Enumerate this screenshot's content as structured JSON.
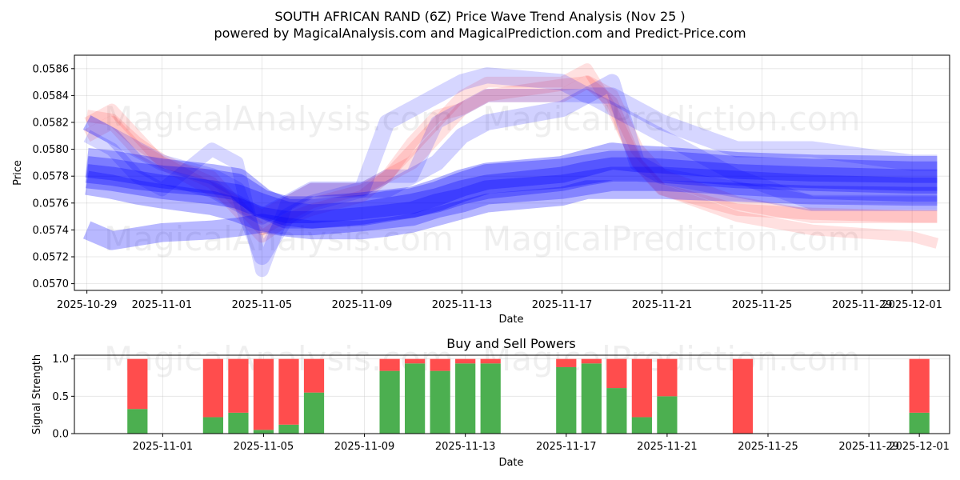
{
  "title_line1": "SOUTH AFRICAN RAND (6Z) Price Wave Trend Analysis (Nov 25 )",
  "title_line2": "powered by MagicalAnalysis.com and MagicalPrediction.com and Predict-Price.com",
  "watermark_a": "MagicalAnalysis.com",
  "watermark_b": "MagicalPrediction.com",
  "colors": {
    "blue": "#0000ff",
    "red": "#ff0000",
    "buy": "#4caf50",
    "sell": "#ff4d4d"
  },
  "chart_data": [
    {
      "type": "line",
      "name": "price-wave-chart",
      "xlabel": "Date",
      "ylabel": "Price",
      "x_range": [
        "2025-10-28T12:00",
        "2025-12-02T12:00"
      ],
      "ylim": [
        0.05695,
        0.0587
      ],
      "x_ticks": [
        "2025-10-29",
        "2025-11-01",
        "2025-11-05",
        "2025-11-09",
        "2025-11-13",
        "2025-11-17",
        "2025-11-21",
        "2025-11-25",
        "2025-11-29",
        "2025-12-01"
      ],
      "y_ticks": [
        "0.0570",
        "0.0572",
        "0.0574",
        "0.0576",
        "0.0578",
        "0.0580",
        "0.0582",
        "0.0584",
        "0.0586"
      ],
      "grid": true,
      "dates": [
        "2025-10-29",
        "2025-10-30",
        "2025-10-31",
        "2025-11-01",
        "2025-11-03",
        "2025-11-04",
        "2025-11-05",
        "2025-11-06",
        "2025-11-07",
        "2025-11-09",
        "2025-11-10",
        "2025-11-11",
        "2025-11-12",
        "2025-11-13",
        "2025-11-14",
        "2025-11-17",
        "2025-11-18",
        "2025-11-19",
        "2025-11-20",
        "2025-11-21",
        "2025-11-24",
        "2025-11-27",
        "2025-12-01",
        "2025-12-02"
      ],
      "series": [
        {
          "name": "red-wave-1",
          "color": "red",
          "alpha": 0.12,
          "width": 9e-05,
          "values": [
            0.05825,
            0.05822,
            0.05805,
            0.05792,
            0.05775,
            0.05755,
            0.05735,
            0.05748,
            0.05755,
            0.05765,
            0.0578,
            0.05805,
            0.05825,
            0.0583,
            0.0584,
            0.05848,
            0.0585,
            0.05835,
            0.0579,
            0.0577,
            0.05755,
            0.05752,
            0.0575,
            0.0575
          ]
        },
        {
          "name": "red-wave-2",
          "color": "red",
          "alpha": 0.12,
          "width": 8e-05,
          "values": [
            0.0582,
            0.0583,
            0.0581,
            0.0579,
            0.0578,
            0.0576,
            0.0574,
            0.0575,
            0.0576,
            0.0577,
            0.0578,
            0.058,
            0.0582,
            0.0584,
            0.0585,
            0.0585,
            0.0586,
            0.0583,
            0.0579,
            0.0577,
            0.0575,
            0.0574,
            0.05735,
            0.0573
          ]
        },
        {
          "name": "red-wave-3",
          "color": "red",
          "alpha": 0.12,
          "width": 0.0001,
          "values": [
            0.0581,
            0.0582,
            0.058,
            0.0579,
            0.0577,
            0.0576,
            0.0575,
            0.0576,
            0.0577,
            0.0577,
            0.0578,
            0.0579,
            0.0581,
            0.0583,
            0.0584,
            0.0584,
            0.0585,
            0.0584,
            0.058,
            0.0578,
            0.0576,
            0.0575,
            0.0575,
            0.0575
          ]
        },
        {
          "name": "blue-wave-1",
          "color": "blue",
          "alpha": 0.16,
          "width": 0.00012,
          "values": [
            0.0582,
            0.0581,
            0.058,
            0.0579,
            0.0578,
            0.0577,
            0.0572,
            0.0575,
            0.0576,
            0.0577,
            0.0582,
            0.0583,
            0.0584,
            0.0585,
            0.05855,
            0.0585,
            0.0584,
            0.0584,
            0.0583,
            0.0582,
            0.058,
            0.058,
            0.0579,
            0.0579
          ]
        },
        {
          "name": "blue-wave-2",
          "color": "blue",
          "alpha": 0.16,
          "width": 0.0001,
          "values": [
            0.0581,
            0.058,
            0.0578,
            0.0577,
            0.058,
            0.0579,
            0.0571,
            0.0576,
            0.0577,
            0.0577,
            0.0578,
            0.0578,
            0.0582,
            0.0583,
            0.0584,
            0.0584,
            0.0584,
            0.0583,
            0.0582,
            0.0581,
            0.0578,
            0.0576,
            0.0576,
            0.0576
          ]
        },
        {
          "name": "blue-wave-3",
          "color": "blue",
          "alpha": 0.18,
          "width": 0.00012,
          "values": [
            0.0582,
            0.0581,
            0.0579,
            0.0578,
            0.0577,
            0.0576,
            0.0575,
            0.0576,
            0.0577,
            0.0577,
            0.0577,
            0.0578,
            0.0579,
            0.0581,
            0.0582,
            0.0583,
            0.0584,
            0.0585,
            0.0579,
            0.0578,
            0.0577,
            0.0576,
            0.0576,
            0.0576
          ]
        },
        {
          "name": "blue-band-1",
          "color": "blue",
          "alpha": 0.3,
          "width": 0.00022,
          "values": [
            0.0579,
            0.05788,
            0.05785,
            0.05782,
            0.05778,
            0.05775,
            0.0576,
            0.05752,
            0.05752,
            0.05755,
            0.05758,
            0.0576,
            0.05765,
            0.05772,
            0.05778,
            0.05782,
            0.05785,
            0.05788,
            0.05788,
            0.05788,
            0.05784,
            0.05782,
            0.0578,
            0.0578
          ]
        },
        {
          "name": "blue-band-2",
          "color": "blue",
          "alpha": 0.3,
          "width": 0.0002,
          "values": [
            0.05785,
            0.05783,
            0.0578,
            0.05778,
            0.05775,
            0.05772,
            0.0576,
            0.05755,
            0.05755,
            0.05758,
            0.0576,
            0.05762,
            0.05768,
            0.05775,
            0.0578,
            0.05785,
            0.0579,
            0.05795,
            0.05793,
            0.05792,
            0.05788,
            0.05786,
            0.05785,
            0.05785
          ]
        },
        {
          "name": "blue-band-3",
          "color": "blue",
          "alpha": 0.3,
          "width": 0.00018,
          "values": [
            0.0578,
            0.05778,
            0.05775,
            0.05772,
            0.05768,
            0.05765,
            0.05758,
            0.05752,
            0.0575,
            0.05752,
            0.05755,
            0.05758,
            0.05762,
            0.05768,
            0.05772,
            0.05778,
            0.05782,
            0.05785,
            0.05785,
            0.05784,
            0.0578,
            0.05778,
            0.05776,
            0.05776
          ]
        },
        {
          "name": "blue-band-4",
          "color": "blue",
          "alpha": 0.28,
          "width": 0.00014,
          "values": [
            0.0574,
            0.05732,
            0.05735,
            0.05738,
            0.0574,
            0.05742,
            0.05745,
            0.05742,
            0.0574,
            0.0574,
            0.05742,
            0.05745,
            0.0575,
            0.05755,
            0.0576,
            0.05765,
            0.0577,
            0.0577,
            0.0577,
            0.0577,
            0.05768,
            0.05766,
            0.05765,
            0.05765
          ]
        },
        {
          "name": "blue-band-5",
          "color": "blue",
          "alpha": 0.28,
          "width": 0.00018,
          "values": [
            0.05775,
            0.05772,
            0.05768,
            0.05765,
            0.0576,
            0.05755,
            0.05748,
            0.05745,
            0.05745,
            0.05748,
            0.0575,
            0.05752,
            0.05758,
            0.05762,
            0.05768,
            0.05772,
            0.05775,
            0.05778,
            0.05778,
            0.05778,
            0.05775,
            0.05772,
            0.0577,
            0.0577
          ]
        }
      ]
    },
    {
      "type": "bar",
      "name": "buy-sell-powers",
      "title": "Buy and Sell Powers",
      "xlabel": "Date",
      "ylabel": "Signal Strength",
      "ylim": [
        0,
        1.05
      ],
      "y_ticks": [
        "0.0",
        "0.5",
        "1.0"
      ],
      "x_ticks": [
        "2025-11-01",
        "2025-11-05",
        "2025-11-09",
        "2025-11-13",
        "2025-11-17",
        "2025-11-21",
        "2025-11-25",
        "2025-11-29",
        "2025-12-01"
      ],
      "series_names": [
        "Buy",
        "Sell"
      ],
      "bars": [
        {
          "date": "2025-10-31",
          "buy": 0.33,
          "sell": 0.67
        },
        {
          "date": "2025-11-03",
          "buy": 0.22,
          "sell": 0.78
        },
        {
          "date": "2025-11-04",
          "buy": 0.28,
          "sell": 0.72
        },
        {
          "date": "2025-11-05",
          "buy": 0.05,
          "sell": 0.95
        },
        {
          "date": "2025-11-06",
          "buy": 0.12,
          "sell": 0.88
        },
        {
          "date": "2025-11-07",
          "buy": 0.55,
          "sell": 0.45
        },
        {
          "date": "2025-11-10",
          "buy": 0.84,
          "sell": 0.16
        },
        {
          "date": "2025-11-11",
          "buy": 0.94,
          "sell": 0.06
        },
        {
          "date": "2025-11-12",
          "buy": 0.84,
          "sell": 0.16
        },
        {
          "date": "2025-11-13",
          "buy": 0.94,
          "sell": 0.06
        },
        {
          "date": "2025-11-14",
          "buy": 0.94,
          "sell": 0.06
        },
        {
          "date": "2025-11-17",
          "buy": 0.89,
          "sell": 0.11
        },
        {
          "date": "2025-11-18",
          "buy": 0.94,
          "sell": 0.06
        },
        {
          "date": "2025-11-19",
          "buy": 0.61,
          "sell": 0.39
        },
        {
          "date": "2025-11-20",
          "buy": 0.22,
          "sell": 0.78
        },
        {
          "date": "2025-11-21",
          "buy": 0.5,
          "sell": 0.5
        },
        {
          "date": "2025-11-24",
          "buy": 0.0,
          "sell": 1.0
        },
        {
          "date": "2025-12-01",
          "buy": 0.28,
          "sell": 0.72
        }
      ]
    }
  ]
}
